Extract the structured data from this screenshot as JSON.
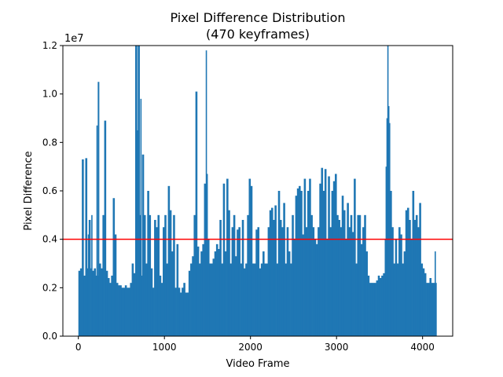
{
  "chart_data": {
    "type": "bar",
    "title_line1": "Pixel Difference Distribution",
    "title_line2": "(470 keyframes)",
    "xlabel": "Video Frame",
    "ylabel": "Pixel Difference",
    "y_offset_label": "1e7",
    "xlim": [
      -180,
      4350
    ],
    "ylim": [
      0,
      1.2
    ],
    "x_ticks": [
      0,
      1000,
      2000,
      3000,
      4000
    ],
    "x_tick_labels": [
      "0",
      "1000",
      "2000",
      "3000",
      "4000"
    ],
    "y_ticks": [
      0.0,
      0.2,
      0.4,
      0.6,
      0.8,
      1.0,
      1.2
    ],
    "y_tick_labels": [
      "0.0",
      "0.2",
      "0.4",
      "0.6",
      "0.8",
      "1.0",
      "1.2"
    ],
    "threshold": 0.4,
    "grid": false,
    "colors": {
      "bars": "#1f77b4",
      "threshold": "#ff0000"
    },
    "series": [
      {
        "values": [
          [
            0,
            0.27
          ],
          [
            20,
            0.28
          ],
          [
            40,
            0.73
          ],
          [
            60,
            0.25
          ],
          [
            80,
            0.735
          ],
          [
            100,
            0.28
          ],
          [
            110,
            0.42
          ],
          [
            120,
            0.48
          ],
          [
            140,
            0.28
          ],
          [
            150,
            0.5
          ],
          [
            160,
            0.27
          ],
          [
            180,
            0.28
          ],
          [
            200,
            0.25
          ],
          [
            210,
            0.87
          ],
          [
            220,
            0.25
          ],
          [
            225,
            1.05
          ],
          [
            240,
            0.3
          ],
          [
            260,
            0.28
          ],
          [
            280,
            0.5
          ],
          [
            300,
            0.89
          ],
          [
            320,
            0.27
          ],
          [
            340,
            0.24
          ],
          [
            360,
            0.22
          ],
          [
            380,
            0.25
          ],
          [
            400,
            0.57
          ],
          [
            420,
            0.42
          ],
          [
            440,
            0.22
          ],
          [
            460,
            0.21
          ],
          [
            480,
            0.21
          ],
          [
            500,
            0.2
          ],
          [
            520,
            0.2
          ],
          [
            540,
            0.21
          ],
          [
            560,
            0.2
          ],
          [
            580,
            0.2
          ],
          [
            600,
            0.22
          ],
          [
            620,
            0.3
          ],
          [
            640,
            0.26
          ],
          [
            660,
            1.2
          ],
          [
            670,
            1.2
          ],
          [
            680,
            0.85
          ],
          [
            690,
            1.2
          ],
          [
            700,
            1.2
          ],
          [
            710,
            0.5
          ],
          [
            720,
            0.98
          ],
          [
            730,
            0.25
          ],
          [
            740,
            0.75
          ],
          [
            760,
            0.5
          ],
          [
            780,
            0.3
          ],
          [
            800,
            0.6
          ],
          [
            820,
            0.5
          ],
          [
            840,
            0.28
          ],
          [
            860,
            0.2
          ],
          [
            880,
            0.48
          ],
          [
            900,
            0.45
          ],
          [
            920,
            0.5
          ],
          [
            940,
            0.25
          ],
          [
            960,
            0.22
          ],
          [
            980,
            0.45
          ],
          [
            1000,
            0.5
          ],
          [
            1020,
            0.3
          ],
          [
            1040,
            0.62
          ],
          [
            1060,
            0.52
          ],
          [
            1080,
            0.35
          ],
          [
            1100,
            0.5
          ],
          [
            1120,
            0.2
          ],
          [
            1140,
            0.38
          ],
          [
            1160,
            0.2
          ],
          [
            1180,
            0.18
          ],
          [
            1200,
            0.2
          ],
          [
            1220,
            0.22
          ],
          [
            1240,
            0.18
          ],
          [
            1260,
            0.18
          ],
          [
            1280,
            0.27
          ],
          [
            1300,
            0.3
          ],
          [
            1320,
            0.33
          ],
          [
            1340,
            0.5
          ],
          [
            1360,
            1.01
          ],
          [
            1380,
            0.37
          ],
          [
            1400,
            0.3
          ],
          [
            1420,
            0.35
          ],
          [
            1440,
            0.38
          ],
          [
            1460,
            0.63
          ],
          [
            1480,
            1.18
          ],
          [
            1490,
            0.67
          ],
          [
            1500,
            0.4
          ],
          [
            1520,
            0.3
          ],
          [
            1540,
            0.3
          ],
          [
            1560,
            0.32
          ],
          [
            1580,
            0.35
          ],
          [
            1600,
            0.38
          ],
          [
            1620,
            0.36
          ],
          [
            1640,
            0.48
          ],
          [
            1660,
            0.3
          ],
          [
            1680,
            0.63
          ],
          [
            1700,
            0.35
          ],
          [
            1720,
            0.65
          ],
          [
            1740,
            0.52
          ],
          [
            1760,
            0.3
          ],
          [
            1780,
            0.45
          ],
          [
            1800,
            0.5
          ],
          [
            1820,
            0.33
          ],
          [
            1840,
            0.44
          ],
          [
            1860,
            0.45
          ],
          [
            1880,
            0.3
          ],
          [
            1900,
            0.48
          ],
          [
            1920,
            0.28
          ],
          [
            1940,
            0.3
          ],
          [
            1960,
            0.5
          ],
          [
            1980,
            0.65
          ],
          [
            2000,
            0.62
          ],
          [
            2020,
            0.3
          ],
          [
            2040,
            0.3
          ],
          [
            2060,
            0.44
          ],
          [
            2080,
            0.45
          ],
          [
            2100,
            0.28
          ],
          [
            2120,
            0.3
          ],
          [
            2140,
            0.35
          ],
          [
            2160,
            0.3
          ],
          [
            2180,
            0.3
          ],
          [
            2200,
            0.45
          ],
          [
            2220,
            0.52
          ],
          [
            2240,
            0.53
          ],
          [
            2260,
            0.48
          ],
          [
            2280,
            0.54
          ],
          [
            2300,
            0.3
          ],
          [
            2320,
            0.6
          ],
          [
            2340,
            0.48
          ],
          [
            2360,
            0.45
          ],
          [
            2380,
            0.55
          ],
          [
            2400,
            0.3
          ],
          [
            2420,
            0.45
          ],
          [
            2440,
            0.35
          ],
          [
            2460,
            0.3
          ],
          [
            2480,
            0.5
          ],
          [
            2500,
            0.4
          ],
          [
            2520,
            0.58
          ],
          [
            2540,
            0.61
          ],
          [
            2560,
            0.62
          ],
          [
            2580,
            0.6
          ],
          [
            2600,
            0.42
          ],
          [
            2620,
            0.65
          ],
          [
            2640,
            0.45
          ],
          [
            2660,
            0.6
          ],
          [
            2680,
            0.65
          ],
          [
            2700,
            0.5
          ],
          [
            2720,
            0.45
          ],
          [
            2740,
            0.4
          ],
          [
            2760,
            0.38
          ],
          [
            2780,
            0.45
          ],
          [
            2800,
            0.63
          ],
          [
            2820,
            0.695
          ],
          [
            2840,
            0.6
          ],
          [
            2860,
            0.69
          ],
          [
            2880,
            0.4
          ],
          [
            2900,
            0.66
          ],
          [
            2920,
            0.45
          ],
          [
            2940,
            0.6
          ],
          [
            2960,
            0.64
          ],
          [
            2980,
            0.67
          ],
          [
            3000,
            0.5
          ],
          [
            3020,
            0.48
          ],
          [
            3040,
            0.45
          ],
          [
            3060,
            0.58
          ],
          [
            3080,
            0.52
          ],
          [
            3100,
            0.4
          ],
          [
            3120,
            0.55
          ],
          [
            3140,
            0.45
          ],
          [
            3160,
            0.5
          ],
          [
            3180,
            0.43
          ],
          [
            3200,
            0.65
          ],
          [
            3220,
            0.3
          ],
          [
            3240,
            0.5
          ],
          [
            3260,
            0.5
          ],
          [
            3280,
            0.38
          ],
          [
            3300,
            0.45
          ],
          [
            3320,
            0.5
          ],
          [
            3340,
            0.35
          ],
          [
            3360,
            0.25
          ],
          [
            3380,
            0.22
          ],
          [
            3400,
            0.22
          ],
          [
            3420,
            0.22
          ],
          [
            3440,
            0.22
          ],
          [
            3460,
            0.23
          ],
          [
            3480,
            0.25
          ],
          [
            3500,
            0.24
          ],
          [
            3520,
            0.25
          ],
          [
            3540,
            0.26
          ],
          [
            3560,
            0.4
          ],
          [
            3570,
            0.7
          ],
          [
            3580,
            0.9
          ],
          [
            3590,
            1.2
          ],
          [
            3600,
            0.95
          ],
          [
            3610,
            0.88
          ],
          [
            3620,
            0.6
          ],
          [
            3640,
            0.45
          ],
          [
            3660,
            0.3
          ],
          [
            3680,
            0.4
          ],
          [
            3700,
            0.3
          ],
          [
            3720,
            0.45
          ],
          [
            3740,
            0.42
          ],
          [
            3760,
            0.3
          ],
          [
            3780,
            0.35
          ],
          [
            3800,
            0.52
          ],
          [
            3820,
            0.53
          ],
          [
            3840,
            0.48
          ],
          [
            3860,
            0.4
          ],
          [
            3880,
            0.6
          ],
          [
            3900,
            0.48
          ],
          [
            3920,
            0.5
          ],
          [
            3940,
            0.45
          ],
          [
            3960,
            0.55
          ],
          [
            3980,
            0.3
          ],
          [
            4000,
            0.28
          ],
          [
            4020,
            0.26
          ],
          [
            4040,
            0.22
          ],
          [
            4060,
            0.22
          ],
          [
            4080,
            0.24
          ],
          [
            4100,
            0.22
          ],
          [
            4120,
            0.22
          ],
          [
            4140,
            0.35
          ],
          [
            4150,
            0.22
          ]
        ]
      }
    ]
  }
}
